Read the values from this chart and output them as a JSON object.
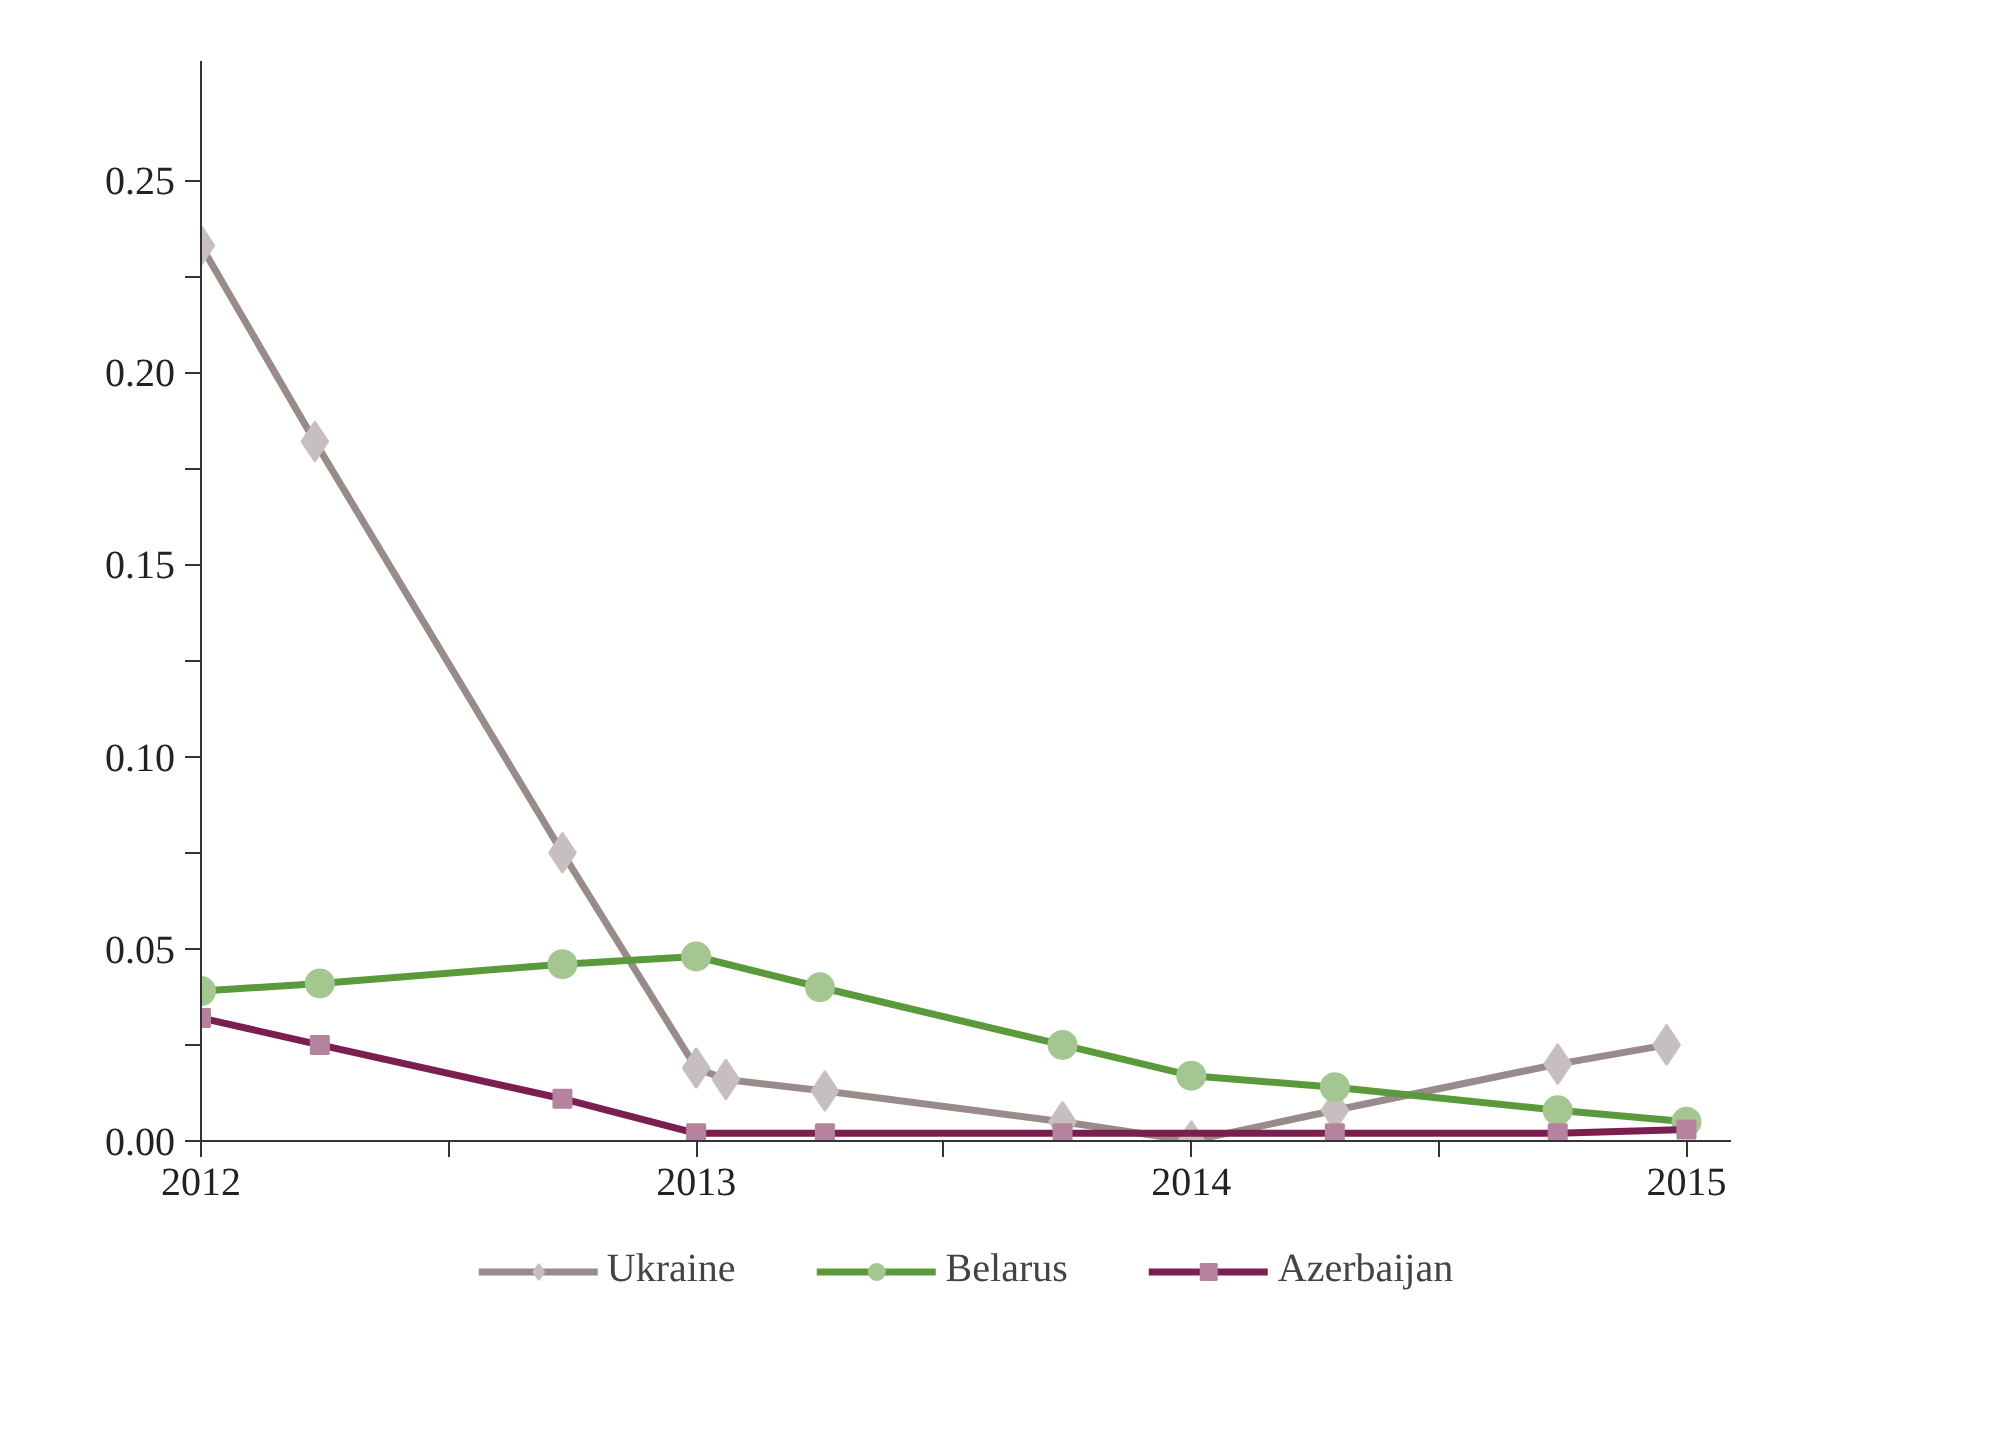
{
  "chart_data": {
    "type": "line",
    "xlim": [
      2012,
      2015.09
    ],
    "ylim": [
      0,
      0.281
    ],
    "xticks": [
      2012,
      {
        "value": 2012.5,
        "label": null
      },
      2013,
      {
        "value": 2013.5,
        "label": null
      },
      2014,
      {
        "value": 2014.5,
        "label": null
      },
      2015
    ],
    "yticks": [
      {
        "value": 0,
        "label": "0.00"
      },
      {
        "value": 0.025,
        "label": null
      },
      {
        "value": 0.05,
        "label": "0.05"
      },
      {
        "value": 0.075,
        "label": null
      },
      {
        "value": 0.1,
        "label": "0.10"
      },
      {
        "value": 0.125,
        "label": null
      },
      {
        "value": 0.15,
        "label": "0.15"
      },
      {
        "value": 0.175,
        "label": null
      },
      {
        "value": 0.2,
        "label": "0.20"
      },
      {
        "value": 0.225,
        "label": null
      },
      {
        "value": 0.25,
        "label": "0.25"
      }
    ],
    "grid": false,
    "legend": "bottom",
    "line_style": "solid",
    "series": [
      {
        "name": "Ukraine",
        "color": "#9a8b8b",
        "marker": "diamond",
        "x": [
          2012,
          2012.23,
          2012.73,
          2013,
          2013.06,
          2013.26,
          2013.74,
          2014,
          2014.29,
          2014.74,
          2014.96
        ],
        "values": [
          0.233,
          0.182,
          0.075,
          0.019,
          0.016,
          0.013,
          0.005,
          0.0,
          0.008,
          0.02,
          0.025
        ]
      },
      {
        "name": "Belarus",
        "color": "#5a9a3a",
        "marker": "circle",
        "x": [
          2012,
          2012.24,
          2012.73,
          2013,
          2013.25,
          2013.74,
          2014,
          2014.29,
          2014.74,
          2015
        ],
        "values": [
          0.039,
          0.041,
          0.046,
          0.048,
          0.04,
          0.025,
          0.017,
          0.014,
          0.008,
          0.005
        ]
      },
      {
        "name": "Azerbaijan",
        "color": "#7a1f50",
        "marker": "square",
        "x": [
          2012,
          2012.24,
          2012.73,
          2013,
          2013.26,
          2013.74,
          2014.29,
          2014.74,
          2015
        ],
        "values": [
          0.032,
          0.025,
          0.011,
          0.002,
          0.002,
          0.002,
          0.002,
          0.002,
          0.003
        ]
      }
    ]
  }
}
